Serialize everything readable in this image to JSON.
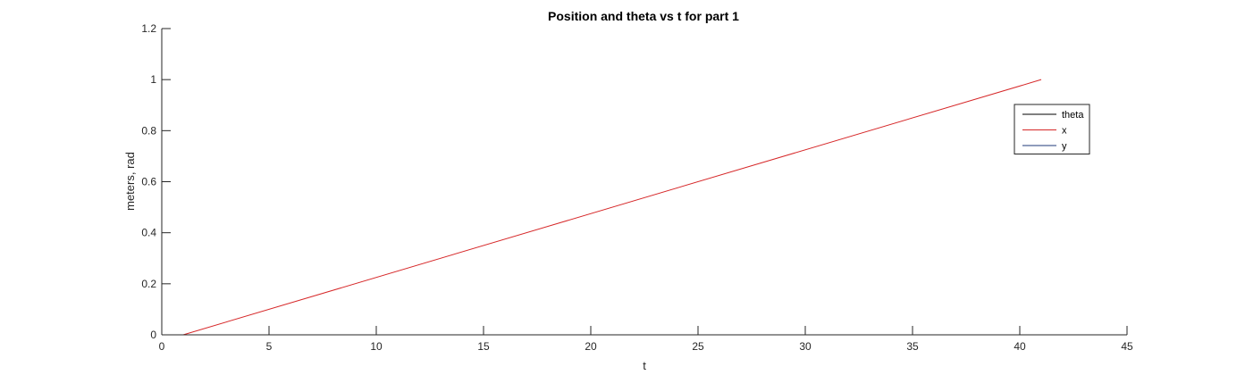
{
  "chart_data": {
    "type": "line",
    "title": "Position and theta vs t for part 1",
    "xlabel": "t",
    "ylabel": "meters, rad",
    "xlim": [
      0,
      45
    ],
    "ylim": [
      0,
      1.2
    ],
    "xticks": [
      0,
      5,
      10,
      15,
      20,
      25,
      30,
      35,
      40,
      45
    ],
    "yticks": [
      0,
      0.2,
      0.4,
      0.6,
      0.8,
      1,
      1.2
    ],
    "xtick_labels": [
      "0",
      "5",
      "10",
      "15",
      "20",
      "25",
      "30",
      "35",
      "40",
      "45"
    ],
    "ytick_labels": [
      "0",
      "0.2",
      "0.4",
      "0.6",
      "0.8",
      "1",
      "1.2"
    ],
    "grid": false,
    "legend_position": "top-right",
    "series": [
      {
        "name": "theta",
        "color": "#000000",
        "x": [
          1,
          41
        ],
        "y": [
          0,
          0
        ]
      },
      {
        "name": "x",
        "color": "#d62728",
        "x": [
          1,
          41
        ],
        "y": [
          0,
          1
        ]
      },
      {
        "name": "y",
        "color": "#1f3a7a",
        "x": [
          1,
          41
        ],
        "y": [
          0,
          0
        ]
      }
    ]
  }
}
